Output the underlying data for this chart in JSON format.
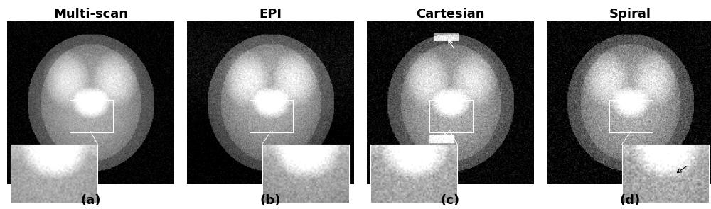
{
  "titles": [
    "Multi-scan",
    "EPI",
    "Cartesian",
    "Spiral"
  ],
  "labels": [
    "(a)",
    "(b)",
    "(c)",
    "(d)"
  ],
  "background_color": "#000000",
  "title_color": "#000000",
  "label_color": "#000000",
  "figure_bg": "#ffffff",
  "title_fontsize": 13,
  "label_fontsize": 13,
  "figsize": [
    10.0,
    2.95
  ],
  "dpi": 100,
  "n_panels": 4
}
